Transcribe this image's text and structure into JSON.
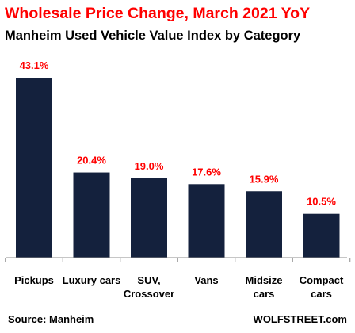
{
  "chart_data": {
    "type": "bar",
    "title": "Wholesale Price Change, March 2021 YoY",
    "subtitle": "Manheim Used Vehicle Value Index by Category",
    "categories": [
      "Pickups",
      "Luxury cars",
      "SUV, Crossover",
      "Vans",
      "Midsize cars",
      "Compact cars"
    ],
    "category_lines": [
      [
        "Pickups"
      ],
      [
        "Luxury cars"
      ],
      [
        "SUV,",
        "Crossover"
      ],
      [
        "Vans"
      ],
      [
        "Midsize",
        "cars"
      ],
      [
        "Compact",
        "cars"
      ]
    ],
    "values": [
      43.1,
      20.4,
      19.0,
      17.6,
      15.9,
      10.5
    ],
    "data_labels": [
      "43.1%",
      "20.4%",
      "19.0%",
      "17.6%",
      "15.9%",
      "10.5%"
    ],
    "ylim": [
      0,
      45
    ],
    "grid": false,
    "legend": "none",
    "bar_color": "#14213d",
    "label_color": "#ff0000"
  },
  "footer": {
    "source": "Source: Manheim",
    "credit": "WOLFSTREET.com"
  }
}
